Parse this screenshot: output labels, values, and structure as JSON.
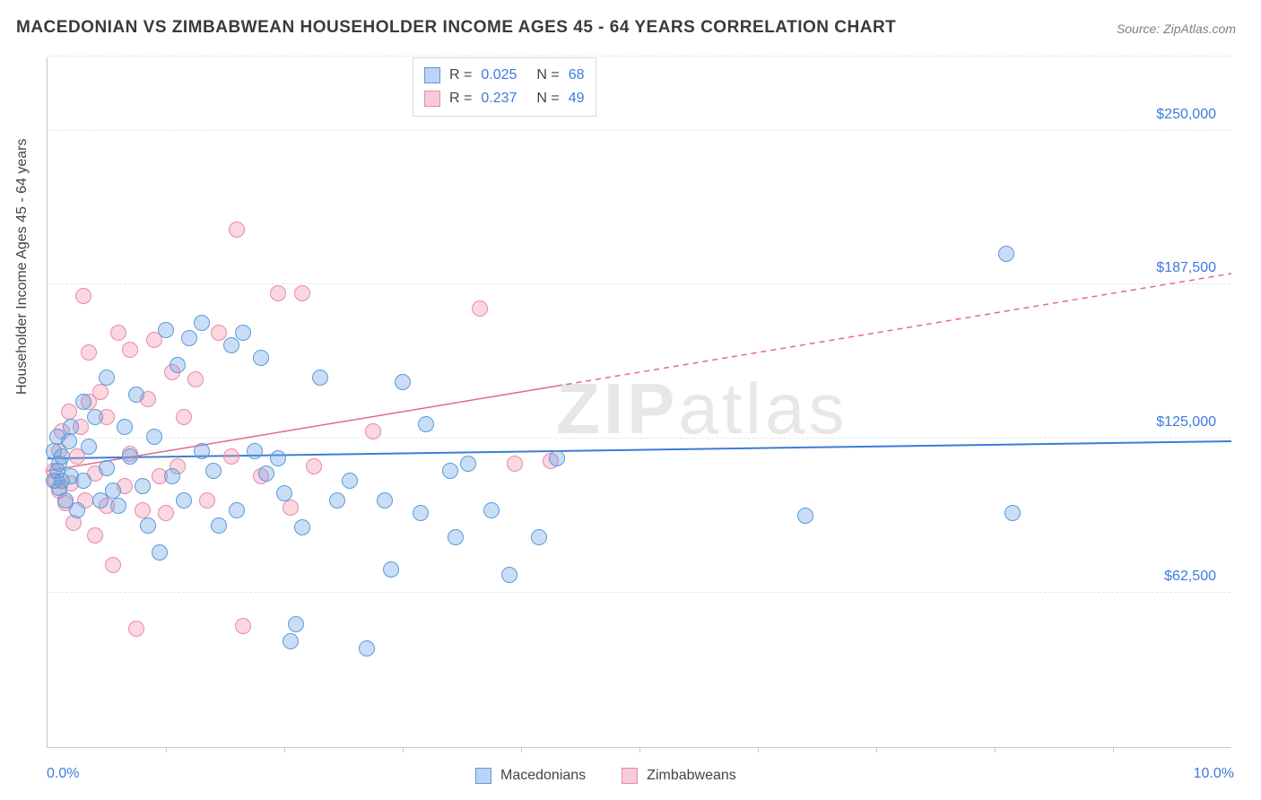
{
  "title": "MACEDONIAN VS ZIMBABWEAN HOUSEHOLDER INCOME AGES 45 - 64 YEARS CORRELATION CHART",
  "source": "Source: ZipAtlas.com",
  "watermark": "ZIPatlas",
  "y_axis_title": "Householder Income Ages 45 - 64 years",
  "chart": {
    "type": "scatter",
    "background_color": "#ffffff",
    "grid_color": "#e6e6e6",
    "axis_color": "#c8c8c8",
    "label_color": "#3d7bd9",
    "xlim": [
      0,
      10
    ],
    "ylim": [
      0,
      280000
    ],
    "x_tick_step": 1,
    "y_gridlines": [
      62500,
      125000,
      187500,
      250000,
      280000
    ],
    "y_labels": [
      {
        "v": 62500,
        "label": "$62,500"
      },
      {
        "v": 125000,
        "label": "$125,000"
      },
      {
        "v": 187500,
        "label": "$187,500"
      },
      {
        "v": 250000,
        "label": "$250,000"
      }
    ],
    "x_labels": [
      {
        "v": 0,
        "label": "0.0%"
      },
      {
        "v": 10,
        "label": "10.0%"
      }
    ],
    "point_radius": 9
  },
  "series": {
    "macedonians": {
      "label": "Macedonians",
      "color_fill": "rgba(100,160,230,0.35)",
      "color_stroke": "#5a9bd8",
      "r": "0.025",
      "n": "68",
      "trend": {
        "y_at_x0": 117000,
        "y_at_x10": 124000,
        "x_solid_max": 10,
        "line_color": "#3d7bd9",
        "line_width": 2
      },
      "points": [
        [
          0.05,
          108000
        ],
        [
          0.05,
          120000
        ],
        [
          0.08,
          112000
        ],
        [
          0.08,
          126000
        ],
        [
          0.1,
          105000
        ],
        [
          0.1,
          115000
        ],
        [
          0.12,
          118000
        ],
        [
          0.12,
          108000
        ],
        [
          0.15,
          100000
        ],
        [
          0.18,
          124000
        ],
        [
          0.2,
          110000
        ],
        [
          0.2,
          130000
        ],
        [
          0.25,
          96000
        ],
        [
          0.3,
          140000
        ],
        [
          0.3,
          108000
        ],
        [
          0.35,
          122000
        ],
        [
          0.4,
          134000
        ],
        [
          0.45,
          100000
        ],
        [
          0.5,
          150000
        ],
        [
          0.5,
          113000
        ],
        [
          0.55,
          104000
        ],
        [
          0.6,
          98000
        ],
        [
          0.65,
          130000
        ],
        [
          0.7,
          118000
        ],
        [
          0.75,
          143000
        ],
        [
          0.8,
          106000
        ],
        [
          0.85,
          90000
        ],
        [
          0.9,
          126000
        ],
        [
          0.95,
          79000
        ],
        [
          1.0,
          169000
        ],
        [
          1.05,
          110000
        ],
        [
          1.1,
          155000
        ],
        [
          1.15,
          100000
        ],
        [
          1.2,
          166000
        ],
        [
          1.3,
          172000
        ],
        [
          1.3,
          120000
        ],
        [
          1.4,
          112000
        ],
        [
          1.45,
          90000
        ],
        [
          1.55,
          163000
        ],
        [
          1.6,
          96000
        ],
        [
          1.65,
          168000
        ],
        [
          1.75,
          120000
        ],
        [
          1.8,
          158000
        ],
        [
          1.85,
          111000
        ],
        [
          1.95,
          117000
        ],
        [
          2.0,
          103000
        ],
        [
          2.05,
          43000
        ],
        [
          2.1,
          50000
        ],
        [
          2.15,
          89000
        ],
        [
          2.3,
          150000
        ],
        [
          2.45,
          100000
        ],
        [
          2.55,
          108000
        ],
        [
          2.7,
          40000
        ],
        [
          2.85,
          100000
        ],
        [
          2.9,
          72000
        ],
        [
          3.0,
          148000
        ],
        [
          3.15,
          95000
        ],
        [
          3.2,
          131000
        ],
        [
          3.4,
          112000
        ],
        [
          3.45,
          85000
        ],
        [
          3.55,
          115000
        ],
        [
          3.75,
          96000
        ],
        [
          3.9,
          70000
        ],
        [
          4.15,
          85000
        ],
        [
          4.3,
          117000
        ],
        [
          6.4,
          94000
        ],
        [
          8.1,
          200000
        ],
        [
          8.15,
          95000
        ]
      ]
    },
    "zimbabweans": {
      "label": "Zimbabweans",
      "color_fill": "rgba(240,140,170,0.35)",
      "color_stroke": "#e88aa8",
      "r": "0.237",
      "n": "49",
      "trend": {
        "y_at_x0": 112000,
        "y_at_x10": 192000,
        "x_solid_max": 4.3,
        "line_color": "#e26891",
        "line_width": 1.5
      },
      "points": [
        [
          0.05,
          112000
        ],
        [
          0.07,
          108000
        ],
        [
          0.1,
          120000
        ],
        [
          0.1,
          104000
        ],
        [
          0.12,
          128000
        ],
        [
          0.15,
          99000
        ],
        [
          0.18,
          136000
        ],
        [
          0.2,
          107000
        ],
        [
          0.22,
          91000
        ],
        [
          0.25,
          118000
        ],
        [
          0.28,
          130000
        ],
        [
          0.3,
          183000
        ],
        [
          0.32,
          100000
        ],
        [
          0.35,
          140000
        ],
        [
          0.35,
          160000
        ],
        [
          0.4,
          111000
        ],
        [
          0.4,
          86000
        ],
        [
          0.45,
          144000
        ],
        [
          0.5,
          98000
        ],
        [
          0.5,
          134000
        ],
        [
          0.55,
          74000
        ],
        [
          0.6,
          168000
        ],
        [
          0.65,
          106000
        ],
        [
          0.7,
          119000
        ],
        [
          0.7,
          161000
        ],
        [
          0.75,
          48000
        ],
        [
          0.8,
          96000
        ],
        [
          0.85,
          141000
        ],
        [
          0.9,
          165000
        ],
        [
          0.95,
          110000
        ],
        [
          1.0,
          95000
        ],
        [
          1.05,
          152000
        ],
        [
          1.1,
          114000
        ],
        [
          1.15,
          134000
        ],
        [
          1.25,
          149000
        ],
        [
          1.35,
          100000
        ],
        [
          1.45,
          168000
        ],
        [
          1.55,
          118000
        ],
        [
          1.6,
          210000
        ],
        [
          1.65,
          49000
        ],
        [
          1.8,
          110000
        ],
        [
          1.95,
          184000
        ],
        [
          2.05,
          97000
        ],
        [
          2.15,
          184000
        ],
        [
          2.25,
          114000
        ],
        [
          2.75,
          128000
        ],
        [
          3.65,
          178000
        ],
        [
          3.95,
          115000
        ],
        [
          4.25,
          116000
        ]
      ]
    }
  },
  "legend_labels": {
    "r": "R =",
    "n": "N ="
  }
}
